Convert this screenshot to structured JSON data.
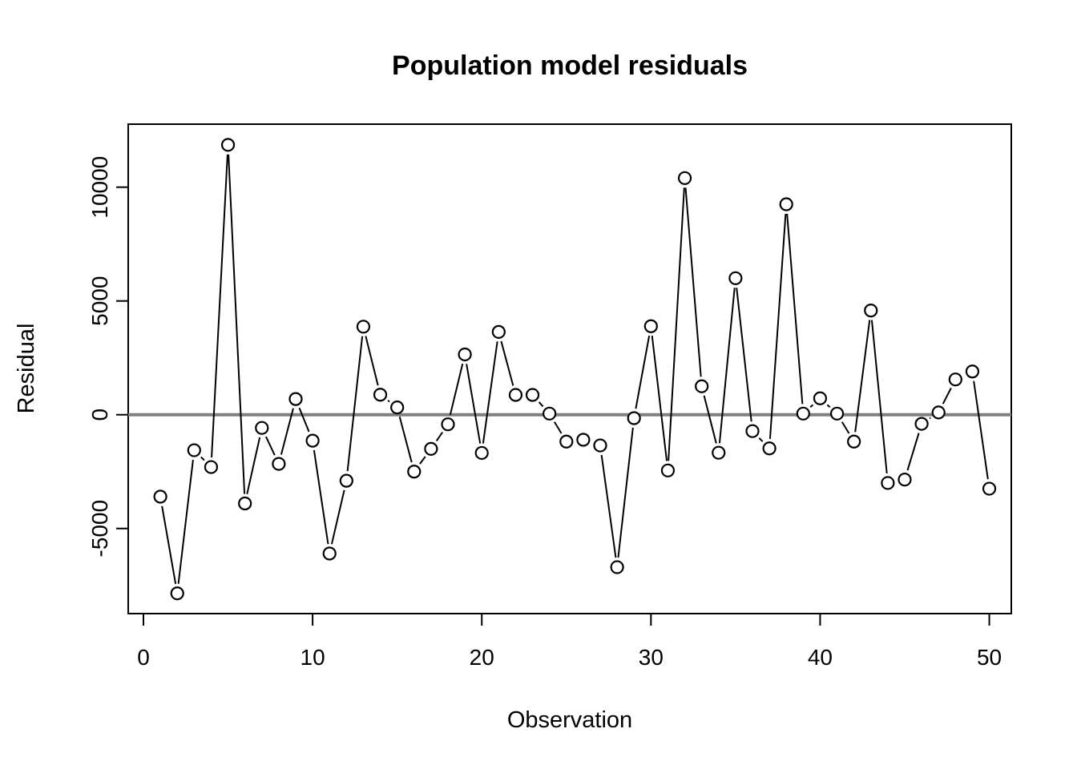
{
  "chart_data": {
    "type": "line",
    "title": "Population model residuals",
    "xlabel": "Observation",
    "ylabel": "Residual",
    "marker": "open-circle",
    "line_between_points": true,
    "grid": false,
    "legend": null,
    "xlim": [
      -0.9,
      51.3
    ],
    "ylim": [
      -8740,
      12770
    ],
    "x_ticks": [
      0,
      10,
      20,
      30,
      40,
      50
    ],
    "x_tick_labels": [
      "0",
      "10",
      "20",
      "30",
      "40",
      "50"
    ],
    "y_ticks": [
      -5000,
      0,
      5000,
      10000
    ],
    "y_tick_labels": [
      "-5000",
      "0",
      "5000",
      "10000"
    ],
    "zero_reference_line": 0,
    "x": [
      1,
      2,
      3,
      4,
      5,
      6,
      7,
      8,
      9,
      10,
      11,
      12,
      13,
      14,
      15,
      16,
      17,
      18,
      19,
      20,
      21,
      22,
      23,
      24,
      25,
      26,
      27,
      28,
      29,
      30,
      31,
      32,
      33,
      34,
      35,
      36,
      37,
      38,
      39,
      40,
      41,
      42,
      43,
      44,
      45,
      46,
      47,
      48,
      49,
      50
    ],
    "values": [
      -3600,
      -7850,
      -1560,
      -2300,
      11860,
      -3900,
      -580,
      -2160,
      690,
      -1140,
      -6100,
      -2900,
      3870,
      880,
      320,
      -2500,
      -1500,
      -420,
      2650,
      -1680,
      3640,
      870,
      870,
      50,
      -1180,
      -1100,
      -1350,
      -6700,
      -150,
      3890,
      -2450,
      10400,
      1250,
      -1670,
      6000,
      -720,
      -1480,
      9250,
      50,
      720,
      50,
      -1180,
      4580,
      -3000,
      -2850,
      -400,
      100,
      1550,
      1900,
      -3250
    ],
    "colors": {
      "series": "#000000",
      "zero_line": "#7f7f7f",
      "background": "#ffffff",
      "text": "#000000"
    }
  }
}
